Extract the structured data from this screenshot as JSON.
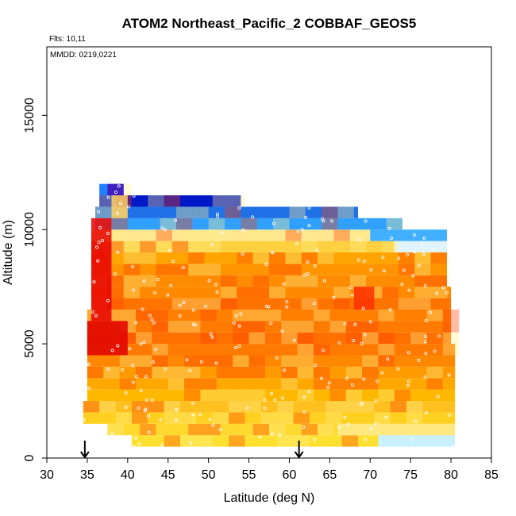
{
  "chart_data": {
    "type": "heatmap",
    "title": "ATOM2 Northeast_Pacific_2 COBBAF_GEOS5",
    "annotations": {
      "flights": "Flts: 10,11",
      "dates": "MMDD: 0219,0221"
    },
    "xlabel": "Latitude (deg N)",
    "ylabel": "Altitude (m)",
    "xlim": [
      30,
      85
    ],
    "ylim": [
      0,
      18000
    ],
    "x_ticks": [
      "30",
      "35",
      "40",
      "45",
      "50",
      "55",
      "60",
      "65",
      "70",
      "75",
      "80",
      "85"
    ],
    "y_ticks": [
      "0",
      "5000",
      "10000",
      "15000"
    ],
    "grid": false,
    "legend": "none",
    "colormap": [
      "#ffffff",
      "#ffe030",
      "#ffb000",
      "#ff7a00",
      "#ff3a00",
      "#e80000",
      "#c8e8ff",
      "#30b0ff",
      "#1060f0",
      "#0000c0",
      "#6a00c0"
    ],
    "arrows_at_latitude": [
      34.7,
      61.2
    ],
    "bands": [
      {
        "alt_bottom": 500,
        "alt_top": 1000,
        "lat_start": 40.5,
        "lat_end": 80.5,
        "color": "#ffe030",
        "tail_color": "#c8f0ff",
        "tail_from": 71
      },
      {
        "alt_bottom": 1000,
        "alt_top": 1500,
        "lat_start": 37.5,
        "lat_end": 80.5,
        "color": "#ffd830",
        "tail_color": "#ffe880",
        "tail_from": 66
      },
      {
        "alt_bottom": 1500,
        "alt_top": 2000,
        "lat_start": 34.5,
        "lat_end": 80.5,
        "color": "#ffd020"
      },
      {
        "alt_bottom": 2000,
        "alt_top": 2500,
        "lat_start": 34.5,
        "lat_end": 80.5,
        "color": "#ffc020"
      },
      {
        "alt_bottom": 2500,
        "alt_top": 3000,
        "lat_start": 35.0,
        "lat_end": 80.5,
        "color": "#ffb800"
      },
      {
        "alt_bottom": 3000,
        "alt_top": 3500,
        "lat_start": 35.0,
        "lat_end": 80.5,
        "color": "#ffa800"
      },
      {
        "alt_bottom": 3500,
        "alt_top": 4000,
        "lat_start": 35.0,
        "lat_end": 80.5,
        "color": "#ff9a00"
      },
      {
        "alt_bottom": 4000,
        "alt_top": 4500,
        "lat_start": 35.0,
        "lat_end": 80.5,
        "color": "#ff8800"
      },
      {
        "alt_bottom": 4500,
        "alt_top": 5000,
        "lat_start": 35.0,
        "lat_end": 80.5,
        "color": "#ff7a00"
      },
      {
        "alt_bottom": 5000,
        "alt_top": 5500,
        "lat_start": 35.0,
        "lat_end": 80.0,
        "color": "#ff7000"
      },
      {
        "alt_bottom": 5500,
        "alt_top": 6000,
        "lat_start": 35.0,
        "lat_end": 80.0,
        "color": "#ff7a00"
      },
      {
        "alt_bottom": 6000,
        "alt_top": 6500,
        "lat_start": 35.0,
        "lat_end": 80.0,
        "color": "#ff8000"
      },
      {
        "alt_bottom": 6500,
        "alt_top": 7000,
        "lat_start": 35.5,
        "lat_end": 80.0,
        "color": "#ff7400"
      },
      {
        "alt_bottom": 7000,
        "alt_top": 7500,
        "lat_start": 35.5,
        "lat_end": 80.0,
        "color": "#ff8a00"
      },
      {
        "alt_bottom": 7500,
        "alt_top": 8000,
        "lat_start": 35.5,
        "lat_end": 79.5,
        "color": "#ff8c00"
      },
      {
        "alt_bottom": 8000,
        "alt_top": 8500,
        "lat_start": 35.5,
        "lat_end": 79.5,
        "color": "#ff9400"
      },
      {
        "alt_bottom": 8500,
        "alt_top": 9000,
        "lat_start": 35.5,
        "lat_end": 79.5,
        "color": "#ffa400"
      },
      {
        "alt_bottom": 9000,
        "alt_top": 9500,
        "lat_start": 35.5,
        "lat_end": 79.5,
        "color": "#ffd040",
        "tail_color": "#e0f4ff",
        "tail_from": 73
      },
      {
        "alt_bottom": 9500,
        "alt_top": 10000,
        "lat_start": 35.5,
        "lat_end": 79.5,
        "color": "#ffe890",
        "tail_color": "#40b0ff",
        "tail_from": 70
      },
      {
        "alt_bottom": 10000,
        "alt_top": 10500,
        "lat_start": 36.0,
        "lat_end": 74.0,
        "color": "#30a0ff"
      },
      {
        "alt_bottom": 10500,
        "alt_top": 11000,
        "lat_start": 36.0,
        "lat_end": 68.5,
        "color": "#2070e8"
      },
      {
        "alt_bottom": 11000,
        "alt_top": 11500,
        "lat_start": 36.5,
        "lat_end": 54.0,
        "color": "#0018c8"
      },
      {
        "alt_bottom": 11500,
        "alt_top": 12000,
        "lat_start": 36.5,
        "lat_end": 39.5,
        "color": "#2080ff"
      }
    ],
    "hotspots": [
      {
        "lat": 35.0,
        "lat_end": 40.0,
        "alt": 4500,
        "alt_end": 6000,
        "color": "#e00000"
      },
      {
        "lat": 35.5,
        "lat_end": 38.0,
        "alt": 6000,
        "alt_end": 10500,
        "color": "#e80000"
      },
      {
        "lat": 68.0,
        "lat_end": 70.5,
        "alt": 6500,
        "alt_end": 7500,
        "color": "#ff3000"
      },
      {
        "lat": 38.0,
        "lat_end": 40.0,
        "alt": 10500,
        "alt_end": 11500,
        "color": "#ffd060"
      }
    ]
  }
}
